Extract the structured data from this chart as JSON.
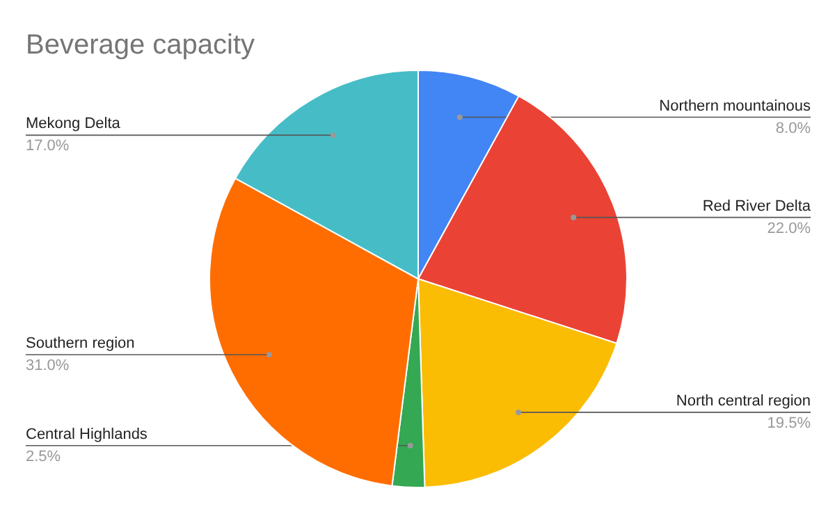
{
  "chart_data": {
    "type": "pie",
    "title": "Beverage capacity",
    "categories": [
      "Northern mountainous",
      "Red River Delta",
      "North central region",
      "Central Highlands",
      "Southern region",
      "Mekong Delta"
    ],
    "values": [
      8.0,
      22.0,
      19.5,
      2.5,
      31.0,
      17.0
    ],
    "value_labels": [
      "8.0%",
      "22.0%",
      "19.5%",
      "2.5%",
      "31.0%",
      "17.0%"
    ],
    "colors": [
      "#4285f4",
      "#ea4335",
      "#fbbc04",
      "#34a853",
      "#ff6d01",
      "#46bdc6"
    ]
  }
}
